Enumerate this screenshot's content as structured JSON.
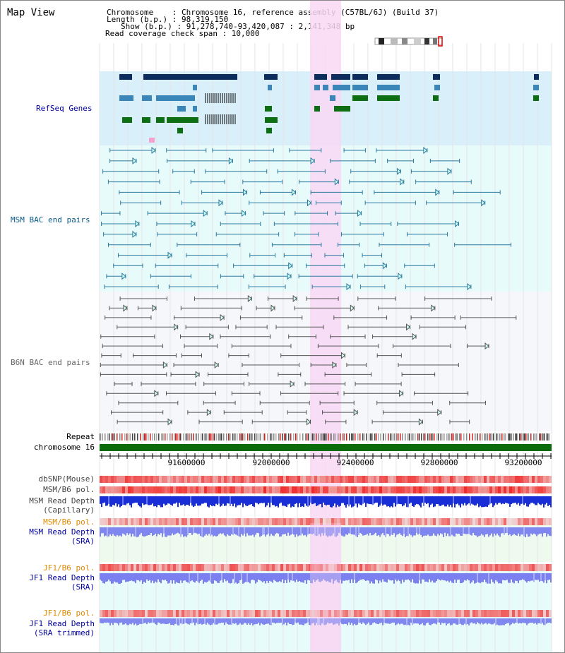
{
  "page": {
    "title": "Map View",
    "info": {
      "chromosome": "Chromosome    : Chromosome 16, reference assembly (C57BL/6J) (Build 37)",
      "length": "Length (b.p.) : 98,319,150",
      "show": "Show (b.p.) : 91,278,740-93,420,087 : 2,141,348 bp",
      "coverage": "Read coverage check span : 10,000"
    }
  },
  "tracks": {
    "refseq": "RefSeq Genes",
    "msm_bac": "MSM BAC end pairs",
    "b6n_bac": "B6N BAC end pairs",
    "repeat": "Repeat",
    "chromosome": "chromosome 16",
    "dbsnp": "dbSNP(Mouse)",
    "msm_b6_pol": "MSM/B6 pol.",
    "msm_depth_cap_1": "MSM Read Depth",
    "msm_depth_cap_2": "(Capillary)",
    "msm_b6_pol_sra": "MSM/B6 pol.",
    "msm_depth_sra_1": "MSM Read Depth",
    "msm_depth_sra_2": "(SRA)",
    "jf1_b6_pol": "JF1/B6 pol.",
    "jf1_depth_sra_1": "JF1 Read Depth",
    "jf1_depth_sra_2": "(SRA)",
    "jf1_b6_pol_trim": "JF1/B6 pol.",
    "jf1_depth_trim_1": "JF1 Read Depth",
    "jf1_depth_trim_2": "(SRA trimmed)"
  },
  "axis": {
    "ticks": [
      "91600000",
      "92000000",
      "92400000",
      "92800000",
      "93200000"
    ]
  },
  "colors": {
    "highlight": "#f8d8f4",
    "refseq_bg": "#d9f0fa",
    "msm_bg": "#e8fbfb",
    "b6n_bg": "#f5f7fb",
    "gene_dark": "#0b2c5c",
    "gene_mid": "#3b86b8",
    "gene_green": "#0d6e13",
    "chromosome_green": "#0b6b0b",
    "label_blue": "#0000a0",
    "label_orange": "#e08a00",
    "label_teal": "#0a5a8a"
  }
}
